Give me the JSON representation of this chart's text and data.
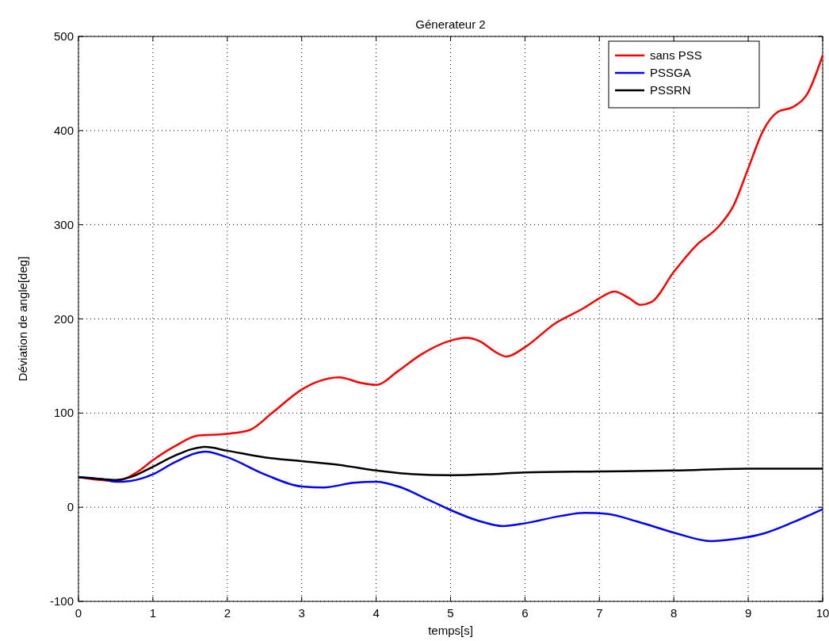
{
  "chart_data": {
    "type": "line",
    "title": "Génerateur 2",
    "xlabel": "temps[s]",
    "ylabel": "Déviation de angle[deg]",
    "xlim": [
      0,
      10
    ],
    "xticks": [
      0,
      1,
      2,
      3,
      4,
      5,
      6,
      7,
      8,
      9,
      10
    ],
    "ylim": [
      -100,
      500
    ],
    "yticks": [
      -100,
      0,
      100,
      200,
      300,
      400,
      500
    ],
    "grid": true,
    "legend": "top right",
    "line_style": "solid",
    "series": [
      {
        "name": "sans PSS",
        "color": "#ff0000",
        "x": [
          0,
          0.5,
          0.8,
          1,
          1.3,
          1.6,
          2,
          2.3,
          2.6,
          3,
          3.2,
          3.5,
          3.8,
          4,
          4.3,
          4.6,
          5,
          5.2,
          5.4,
          5.6,
          5.75,
          6,
          6.4,
          6.8,
          7,
          7.2,
          7.4,
          7.55,
          7.7,
          8,
          8.3,
          8.6,
          8.8,
          9,
          9.2,
          9.4,
          9.6,
          9.8,
          10
        ],
        "values": [
          32,
          28,
          38,
          50,
          65,
          76,
          78,
          82,
          100,
          125,
          133,
          138,
          132,
          130,
          145,
          162,
          177,
          180,
          176,
          165,
          160,
          170,
          195,
          212,
          222,
          229,
          222,
          215,
          218,
          250,
          278,
          298,
          320,
          360,
          400,
          420,
          425,
          440,
          480
        ]
      },
      {
        "name": "PSSGA",
        "color": "#0000ff",
        "x": [
          0,
          0.3,
          0.5,
          0.7,
          1,
          1.3,
          1.7,
          2,
          2.5,
          3,
          3.3,
          3.7,
          4,
          4.3,
          4.7,
          5,
          5.4,
          5.7,
          6,
          6.5,
          6.8,
          7.1,
          7.5,
          8,
          8.5,
          8.8,
          9.2,
          9.6,
          10
        ],
        "values": [
          32,
          30,
          27,
          28,
          35,
          48,
          59,
          53,
          35,
          22,
          21,
          26,
          27,
          22,
          8,
          -3,
          -15,
          -20,
          -17,
          -9,
          -6,
          -7,
          -15,
          -27,
          -36,
          -34,
          -28,
          -16,
          -2
        ]
      },
      {
        "name": "PSSRN",
        "color": "#000000",
        "x": [
          0,
          0.3,
          0.5,
          0.7,
          1,
          1.3,
          1.7,
          2,
          2.5,
          3,
          3.5,
          4,
          4.5,
          5,
          5.5,
          6,
          7,
          8,
          9,
          10
        ],
        "values": [
          32,
          30,
          29,
          32,
          43,
          55,
          64,
          60,
          53,
          49,
          45,
          39,
          35,
          34,
          35,
          37,
          38,
          39,
          41,
          41
        ]
      }
    ]
  }
}
